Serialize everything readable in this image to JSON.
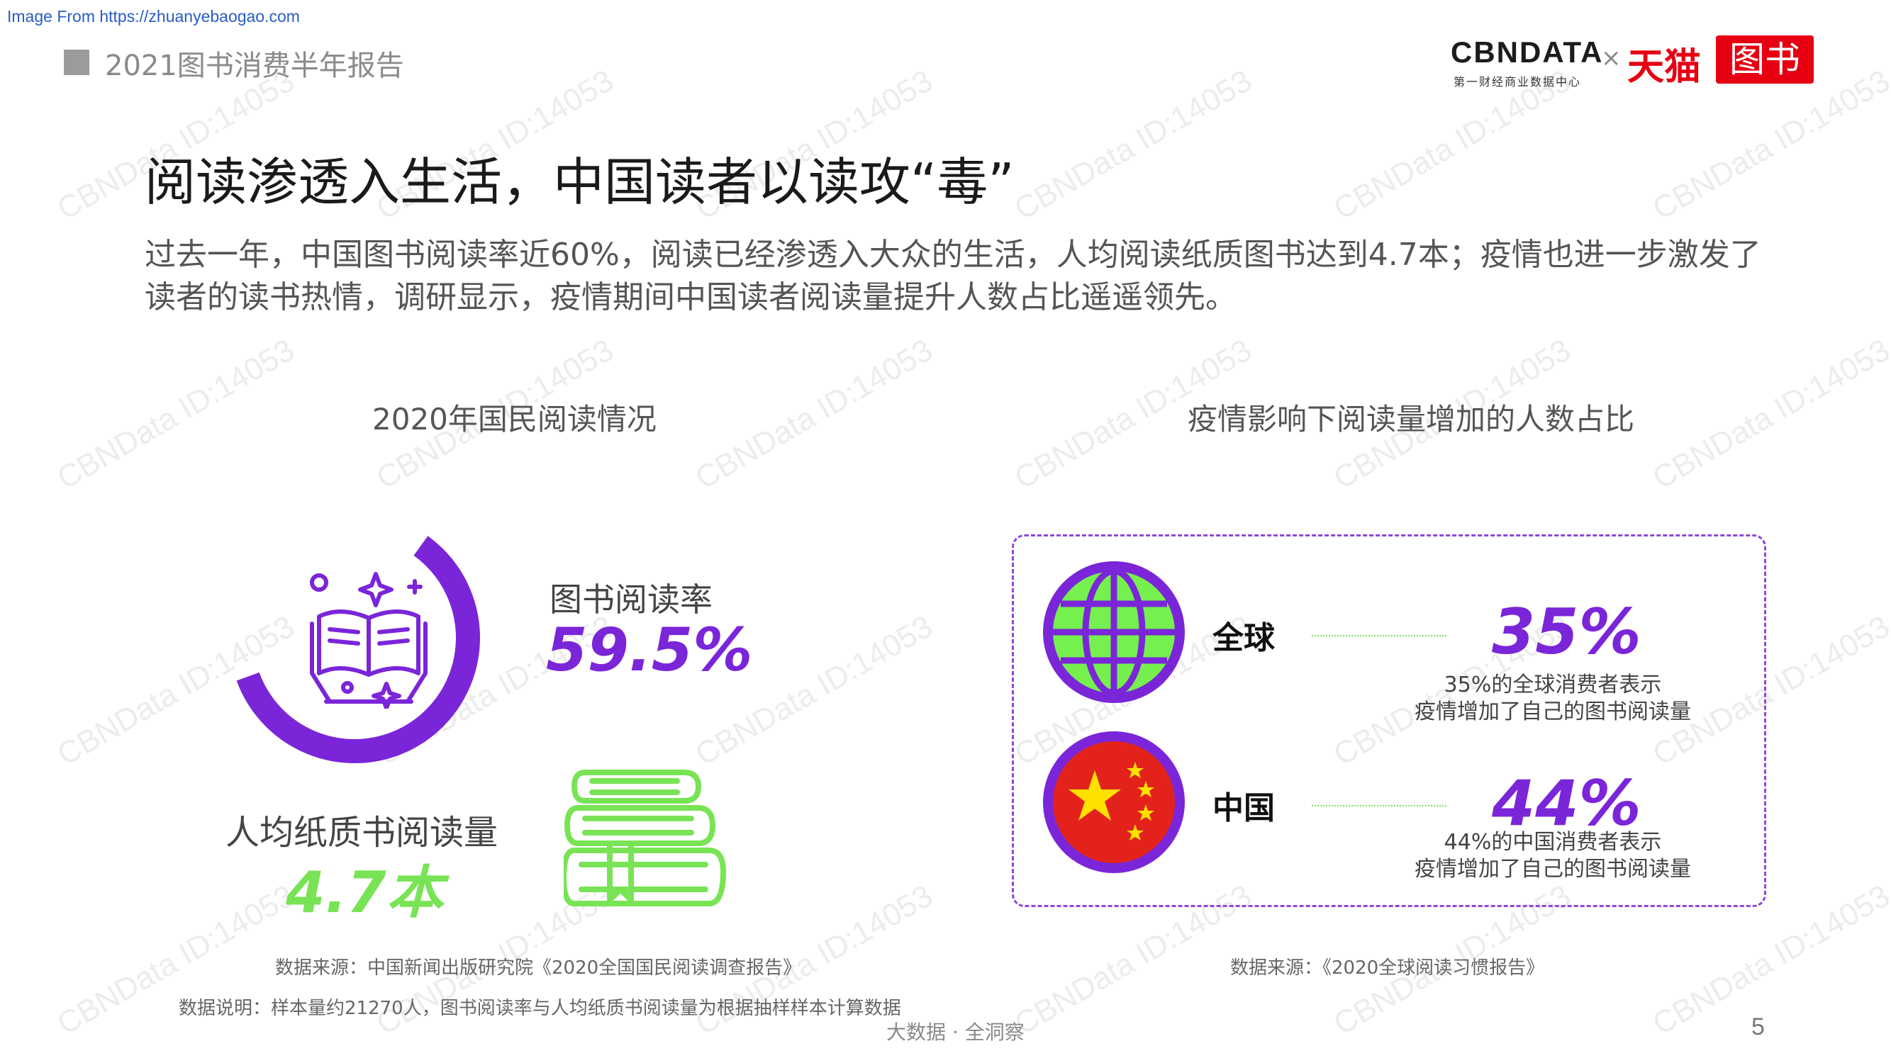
{
  "source_banner": "Image From https://zhuanyebaogao.com",
  "header": {
    "report_title": "2021图书消费半年报告",
    "logo_cbndata": "CBNDATA",
    "logo_cbndata_sub": "第一财经商业数据中心",
    "logo_x": "×",
    "logo_tmall": "天猫",
    "logo_tushu": "图书"
  },
  "main_title": "阅读渗透入生活，中国读者以读攻“毒”",
  "intro": "过去一年，中国图书阅读率近60%，阅读已经渗透入大众的生活，人均阅读纸质图书达到4.7本；疫情也进一步激发了读者的读书热情，调研显示，疫情期间中国读者阅读量提升人数占比遥遥领先。",
  "left_section": {
    "title": "2020年国民阅读情况",
    "rate_label": "图书阅读率",
    "rate_value": "59.5%",
    "rate_fraction": 0.595,
    "books_label": "人均纸质书阅读量",
    "books_value": "4.7本",
    "source": "数据来源：中国新闻出版研究院《2020全国国民阅读调查报告》",
    "description": "数据说明：样本量约21270人，图书阅读率与人均纸质书阅读量为根据抽样样本计算数据"
  },
  "right_section": {
    "title": "疫情影响下阅读量增加的人数占比",
    "global": {
      "label": "全球",
      "percent": "35%",
      "note_line1": "35%的全球消费者表示",
      "note_line2": "疫情增加了自己的图书阅读量"
    },
    "china": {
      "label": "中国",
      "percent": "44%",
      "note_line1": "44%的中国消费者表示",
      "note_line2": "疫情增加了自己的图书阅读量"
    },
    "source": "数据来源：《2020全球阅读习惯报告》"
  },
  "footer": "大数据 · 全洞察",
  "page_number": "5",
  "watermark": "CBNData ID:14053",
  "colors": {
    "purple": "#7b25d9",
    "green": "#79e356",
    "red": "#e60012",
    "globe_green": "#75f04f",
    "china_red": "#e3231b",
    "star_yellow": "#ffe100"
  }
}
